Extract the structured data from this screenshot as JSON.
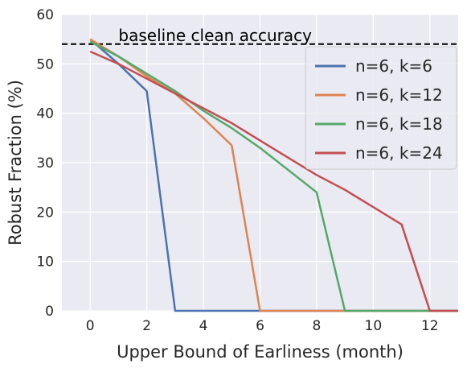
{
  "chart_data": {
    "type": "line",
    "title": "",
    "xlabel": "Upper Bound of Earliness (month)",
    "ylabel": "Robust Fraction (%)",
    "xlim": [
      -1,
      13
    ],
    "ylim": [
      0,
      60
    ],
    "xticks": [
      0,
      2,
      4,
      6,
      8,
      10,
      12
    ],
    "yticks": [
      0,
      10,
      20,
      30,
      40,
      50,
      60
    ],
    "grid": true,
    "background": "#eaeaf2",
    "legend_position": "top-right",
    "baseline": {
      "label": "baseline clean accuracy",
      "value": 54,
      "style": "dashed",
      "color": "#000000"
    },
    "series": [
      {
        "name": "n=6, k=6",
        "color": "#4c72b0",
        "x": [
          0,
          1,
          2,
          3,
          4,
          5,
          6,
          7,
          8,
          9,
          10,
          11,
          12,
          13
        ],
        "y": [
          55,
          50,
          44.5,
          0,
          0,
          0,
          0,
          0,
          0,
          0,
          0,
          0,
          0,
          0
        ]
      },
      {
        "name": "n=6, k=12",
        "color": "#dd8452",
        "x": [
          0,
          1,
          2,
          3,
          4,
          5,
          6,
          7,
          8,
          9,
          10,
          11,
          12,
          13
        ],
        "y": [
          55,
          51.5,
          47.5,
          44,
          39,
          33.5,
          0,
          0,
          0,
          0,
          0,
          0,
          0,
          0
        ]
      },
      {
        "name": "n=6, k=18",
        "color": "#55a868",
        "x": [
          0,
          1,
          2,
          3,
          4,
          5,
          6,
          7,
          8,
          9,
          10,
          11,
          12,
          13
        ],
        "y": [
          54.5,
          51.5,
          48,
          44.5,
          40.5,
          37,
          33,
          28.5,
          24,
          0,
          0,
          0,
          0,
          0
        ]
      },
      {
        "name": "n=6, k=24",
        "color": "#c44e52",
        "x": [
          0,
          1,
          2,
          3,
          4,
          5,
          6,
          7,
          8,
          9,
          10,
          11,
          12,
          13
        ],
        "y": [
          52.5,
          50,
          47,
          44,
          41,
          38,
          34.5,
          31,
          27.5,
          24.5,
          21,
          17.5,
          0,
          0
        ]
      }
    ]
  }
}
